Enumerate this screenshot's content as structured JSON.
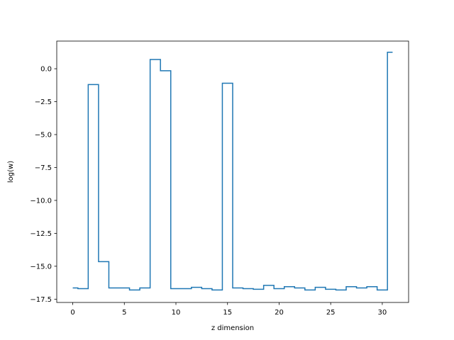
{
  "chart_data": {
    "type": "line",
    "drawstyle": "steps-mid",
    "title": "",
    "xlabel": "z dimension",
    "ylabel": "log(w)",
    "xlim": [
      -1.55,
      32.55
    ],
    "ylim": [
      -17.75,
      2.1
    ],
    "xticks": [
      0,
      5,
      10,
      15,
      20,
      25,
      30
    ],
    "xtick_labels": [
      "0",
      "5",
      "10",
      "15",
      "20",
      "25",
      "30"
    ],
    "yticks": [
      0.0,
      -2.5,
      -5.0,
      -7.5,
      -10.0,
      -12.5,
      -15.0,
      -17.5
    ],
    "ytick_labels": [
      "0.0",
      "−2.5",
      "−5.0",
      "−7.5",
      "−10.0",
      "−12.5",
      "−15.0",
      "−17.5"
    ],
    "grid": false,
    "legend": false,
    "series": [
      {
        "color": "#1f77b4",
        "x": [
          0,
          1,
          2,
          3,
          4,
          5,
          6,
          7,
          8,
          9,
          10,
          11,
          12,
          13,
          14,
          15,
          16,
          17,
          18,
          19,
          20,
          21,
          22,
          23,
          24,
          25,
          26,
          27,
          28,
          29,
          30,
          31
        ],
        "y": [
          -16.65,
          -16.7,
          -1.2,
          -14.65,
          -16.65,
          -16.65,
          -16.8,
          -16.65,
          0.7,
          -0.15,
          -16.7,
          -16.7,
          -16.6,
          -16.7,
          -16.8,
          -1.1,
          -16.65,
          -16.7,
          -16.75,
          -16.45,
          -16.7,
          -16.55,
          -16.65,
          -16.8,
          -16.6,
          -16.75,
          -16.8,
          -16.55,
          -16.65,
          -16.55,
          -16.8,
          1.25
        ]
      }
    ]
  }
}
